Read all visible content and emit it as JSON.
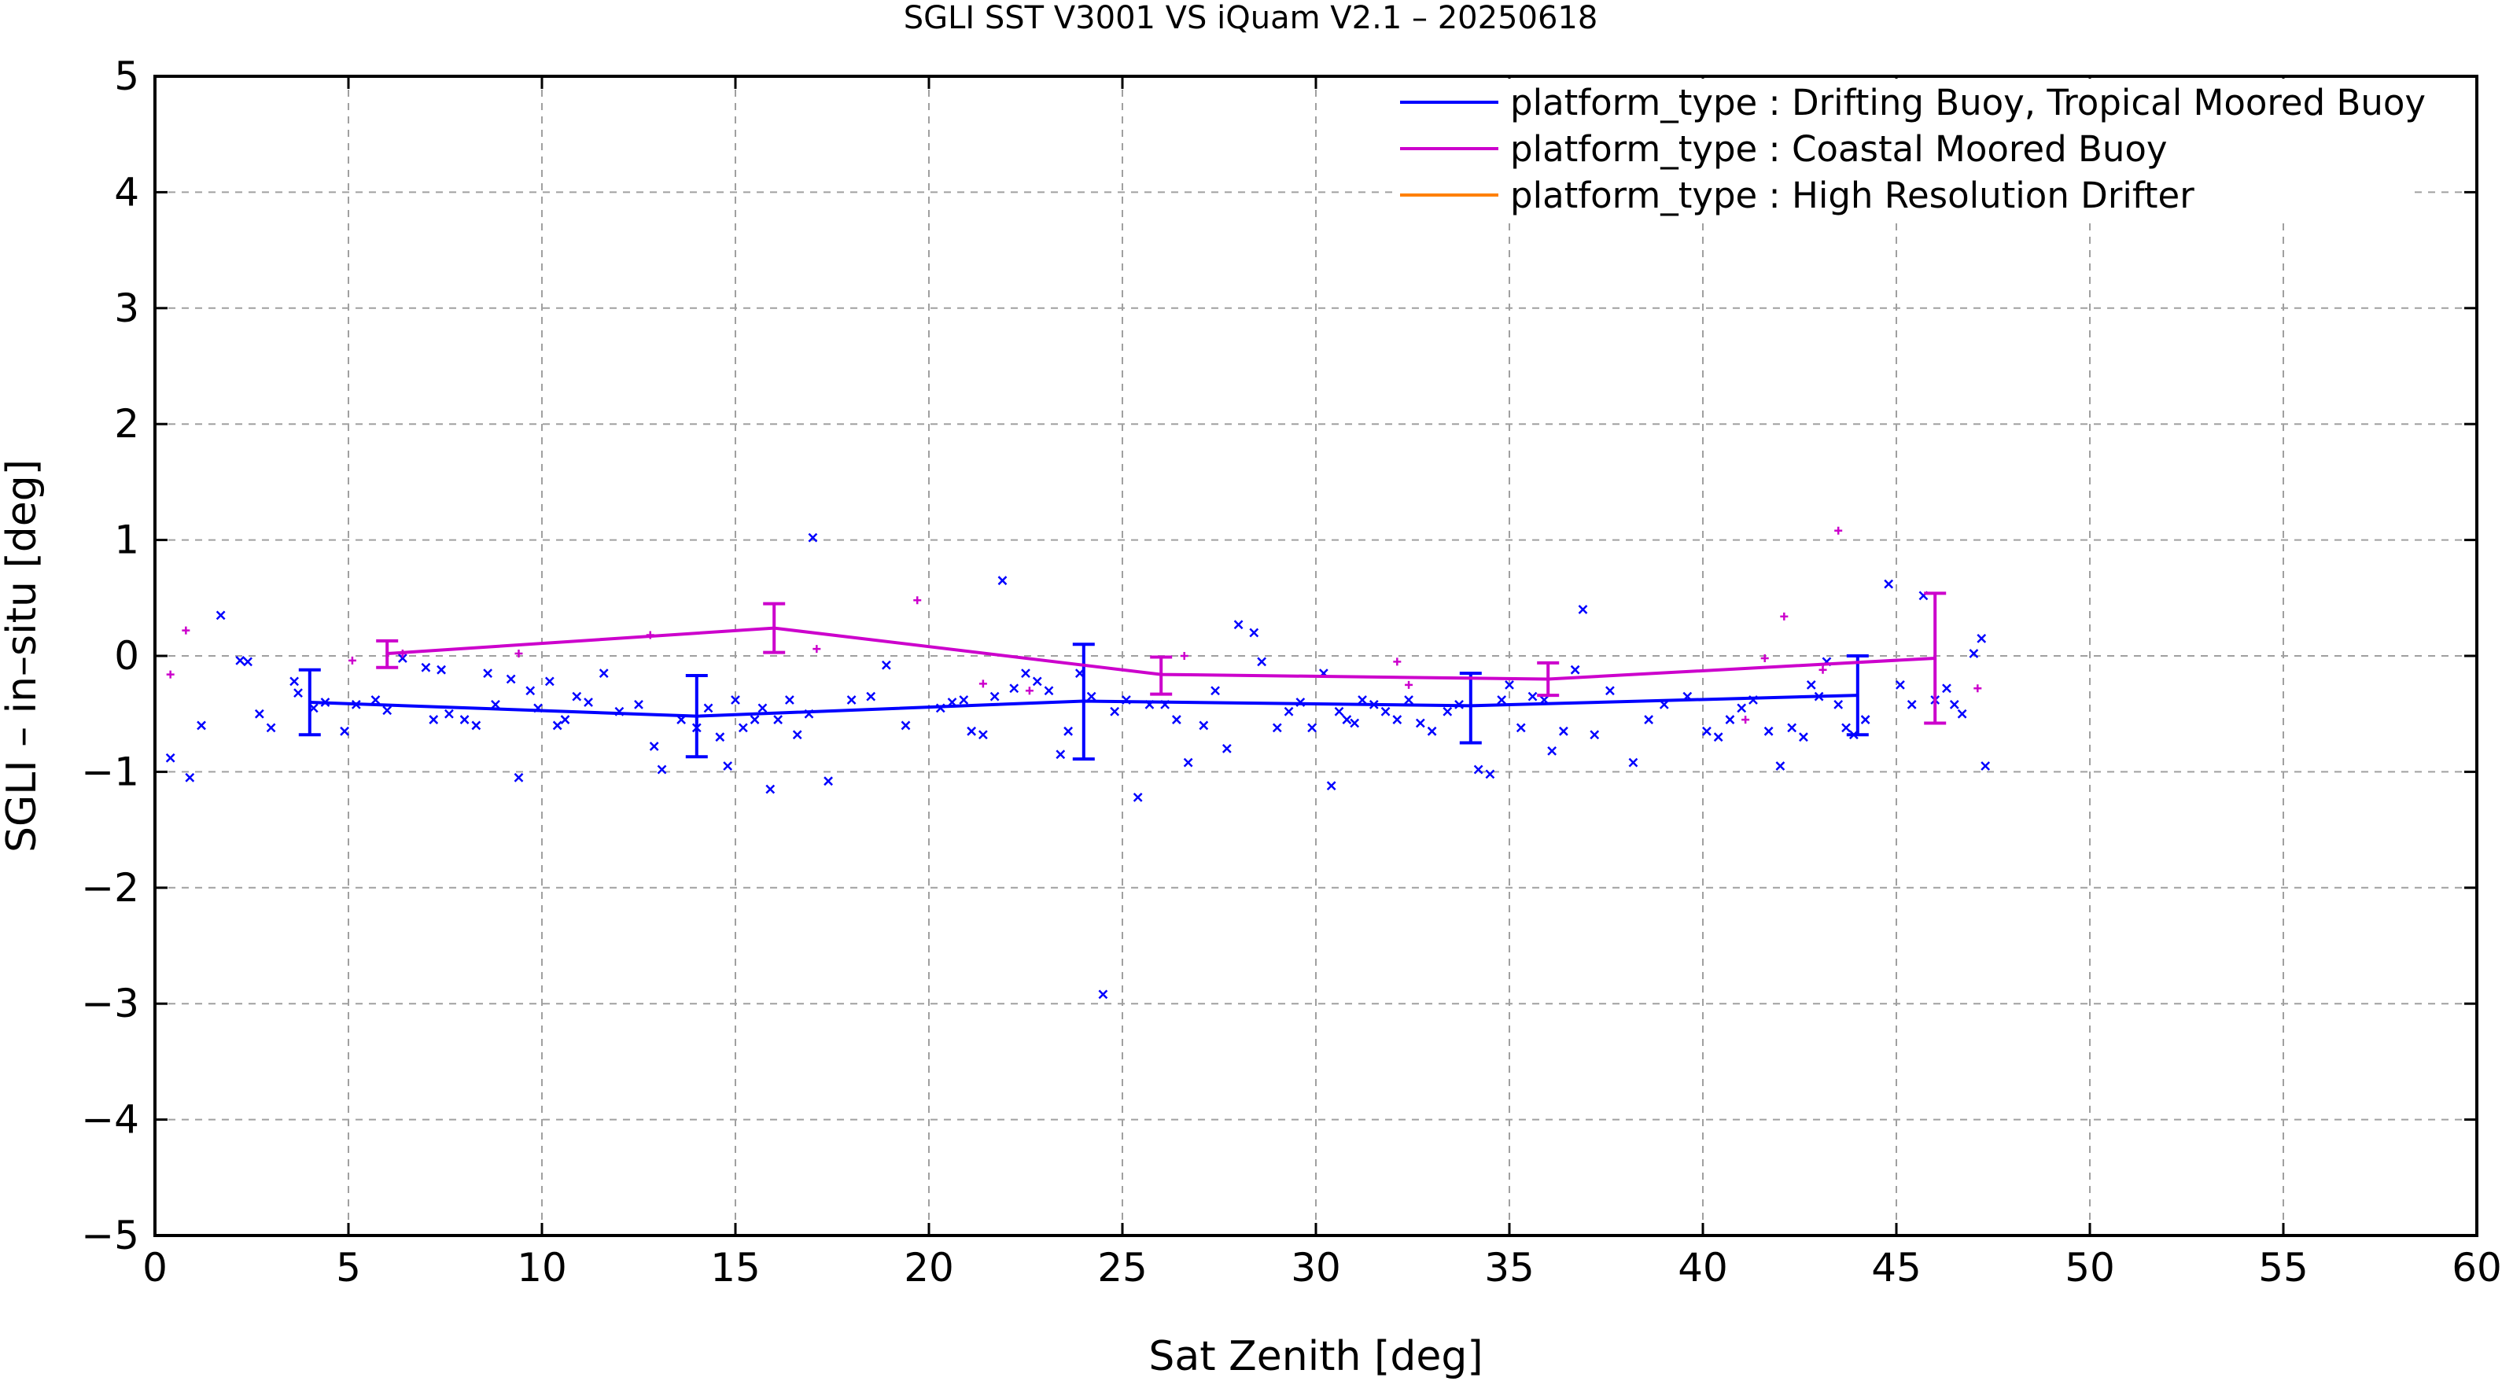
{
  "chart_data": {
    "type": "scatter",
    "title": "SGLI SST V3001 VS iQuam V2.1  – 20250618",
    "xlabel": "Sat Zenith [deg]",
    "ylabel": "SGLI – in–situ [deg]",
    "xlim": [
      0,
      60
    ],
    "ylim": [
      -5,
      5
    ],
    "x_ticks": [
      "0",
      "5",
      "10",
      "15",
      "20",
      "25",
      "30",
      "35",
      "40",
      "45",
      "50",
      "55",
      "60"
    ],
    "y_ticks": [
      "−5",
      "−4",
      "−3",
      "−2",
      "−1",
      "0",
      "1",
      "2",
      "3",
      "4",
      "5"
    ],
    "grid": true,
    "legend_position": "top-right",
    "series": [
      {
        "name": "platform_type : Drifting Buoy, Tropical Moored Buoy",
        "color": "#0000ff",
        "marker": "x",
        "mean_line": [
          {
            "x": 4,
            "y": -0.4,
            "low": -0.68,
            "high": -0.12
          },
          {
            "x": 14,
            "y": -0.52,
            "low": -0.87,
            "high": -0.17
          },
          {
            "x": 24,
            "y": -0.39,
            "low": -0.89,
            "high": 0.1
          },
          {
            "x": 34,
            "y": -0.43,
            "low": -0.75,
            "high": -0.15
          },
          {
            "x": 44,
            "y": -0.34,
            "low": -0.68,
            "high": 0.0
          }
        ],
        "points": [
          [
            0.4,
            -0.88
          ],
          [
            0.9,
            -1.05
          ],
          [
            1.2,
            -0.6
          ],
          [
            1.7,
            0.35
          ],
          [
            2.2,
            -0.04
          ],
          [
            2.4,
            -0.05
          ],
          [
            2.7,
            -0.5
          ],
          [
            3.0,
            -0.62
          ],
          [
            3.6,
            -0.22
          ],
          [
            3.7,
            -0.32
          ],
          [
            4.1,
            -0.45
          ],
          [
            4.4,
            -0.4
          ],
          [
            4.9,
            -0.65
          ],
          [
            5.2,
            -0.42
          ],
          [
            5.7,
            -0.38
          ],
          [
            6.0,
            -0.47
          ],
          [
            6.4,
            -0.02
          ],
          [
            7.0,
            -0.1
          ],
          [
            7.2,
            -0.55
          ],
          [
            7.4,
            -0.12
          ],
          [
            7.6,
            -0.5
          ],
          [
            8.0,
            -0.55
          ],
          [
            8.3,
            -0.6
          ],
          [
            8.6,
            -0.15
          ],
          [
            8.8,
            -0.42
          ],
          [
            9.2,
            -0.2
          ],
          [
            9.4,
            -1.05
          ],
          [
            9.7,
            -0.3
          ],
          [
            9.9,
            -0.45
          ],
          [
            10.2,
            -0.22
          ],
          [
            10.4,
            -0.6
          ],
          [
            10.6,
            -0.55
          ],
          [
            10.9,
            -0.35
          ],
          [
            11.2,
            -0.4
          ],
          [
            11.6,
            -0.15
          ],
          [
            12.0,
            -0.48
          ],
          [
            12.5,
            -0.42
          ],
          [
            12.9,
            -0.78
          ],
          [
            13.1,
            -0.98
          ],
          [
            13.6,
            -0.55
          ],
          [
            14.0,
            -0.62
          ],
          [
            14.3,
            -0.45
          ],
          [
            14.6,
            -0.7
          ],
          [
            14.8,
            -0.95
          ],
          [
            15.0,
            -0.38
          ],
          [
            15.2,
            -0.62
          ],
          [
            15.5,
            -0.55
          ],
          [
            15.7,
            -0.45
          ],
          [
            15.9,
            -1.15
          ],
          [
            16.1,
            -0.55
          ],
          [
            16.4,
            -0.38
          ],
          [
            16.6,
            -0.68
          ],
          [
            16.9,
            -0.5
          ],
          [
            17.0,
            1.02
          ],
          [
            17.4,
            -1.08
          ],
          [
            18.0,
            -0.38
          ],
          [
            18.5,
            -0.35
          ],
          [
            18.9,
            -0.08
          ],
          [
            19.4,
            -0.6
          ],
          [
            20.3,
            -0.45
          ],
          [
            20.6,
            -0.4
          ],
          [
            20.9,
            -0.38
          ],
          [
            21.1,
            -0.65
          ],
          [
            21.4,
            -0.68
          ],
          [
            21.7,
            -0.35
          ],
          [
            21.9,
            0.65
          ],
          [
            22.2,
            -0.28
          ],
          [
            22.5,
            -0.15
          ],
          [
            22.8,
            -0.22
          ],
          [
            23.1,
            -0.3
          ],
          [
            23.4,
            -0.85
          ],
          [
            23.6,
            -0.65
          ],
          [
            23.9,
            -0.15
          ],
          [
            24.2,
            -0.35
          ],
          [
            24.5,
            -2.92
          ],
          [
            24.8,
            -0.48
          ],
          [
            25.1,
            -0.38
          ],
          [
            25.4,
            -1.22
          ],
          [
            25.7,
            -0.42
          ],
          [
            26.1,
            -0.42
          ],
          [
            26.4,
            -0.55
          ],
          [
            26.7,
            -0.92
          ],
          [
            27.1,
            -0.6
          ],
          [
            27.4,
            -0.3
          ],
          [
            27.7,
            -0.8
          ],
          [
            28.0,
            0.27
          ],
          [
            28.4,
            0.2
          ],
          [
            28.6,
            -0.05
          ],
          [
            29.0,
            -0.62
          ],
          [
            29.3,
            -0.48
          ],
          [
            29.6,
            -0.4
          ],
          [
            29.9,
            -0.62
          ],
          [
            30.2,
            -0.15
          ],
          [
            30.4,
            -1.12
          ],
          [
            30.6,
            -0.48
          ],
          [
            30.8,
            -0.55
          ],
          [
            31.0,
            -0.58
          ],
          [
            31.2,
            -0.38
          ],
          [
            31.5,
            -0.42
          ],
          [
            31.8,
            -0.48
          ],
          [
            32.1,
            -0.55
          ],
          [
            32.4,
            -0.38
          ],
          [
            32.7,
            -0.58
          ],
          [
            33.0,
            -0.65
          ],
          [
            33.4,
            -0.48
          ],
          [
            33.7,
            -0.42
          ],
          [
            34.2,
            -0.98
          ],
          [
            34.5,
            -1.02
          ],
          [
            34.8,
            -0.38
          ],
          [
            35.0,
            -0.25
          ],
          [
            35.3,
            -0.62
          ],
          [
            35.6,
            -0.35
          ],
          [
            35.9,
            -0.38
          ],
          [
            36.1,
            -0.82
          ],
          [
            36.4,
            -0.65
          ],
          [
            36.7,
            -0.12
          ],
          [
            36.9,
            0.4
          ],
          [
            37.2,
            -0.68
          ],
          [
            37.6,
            -0.3
          ],
          [
            38.2,
            -0.92
          ],
          [
            38.6,
            -0.55
          ],
          [
            39.0,
            -0.42
          ],
          [
            39.6,
            -0.35
          ],
          [
            40.1,
            -0.65
          ],
          [
            40.4,
            -0.7
          ],
          [
            40.7,
            -0.55
          ],
          [
            41.0,
            -0.45
          ],
          [
            41.3,
            -0.38
          ],
          [
            41.7,
            -0.65
          ],
          [
            42.0,
            -0.95
          ],
          [
            42.3,
            -0.62
          ],
          [
            42.6,
            -0.7
          ],
          [
            42.8,
            -0.25
          ],
          [
            43.0,
            -0.35
          ],
          [
            43.2,
            -0.05
          ],
          [
            43.5,
            -0.42
          ],
          [
            43.7,
            -0.62
          ],
          [
            43.9,
            -0.68
          ],
          [
            44.2,
            -0.55
          ],
          [
            44.8,
            0.62
          ],
          [
            45.1,
            -0.25
          ],
          [
            45.4,
            -0.42
          ],
          [
            45.7,
            0.52
          ],
          [
            46.0,
            -0.38
          ],
          [
            46.3,
            -0.28
          ],
          [
            46.5,
            -0.42
          ],
          [
            46.7,
            -0.5
          ],
          [
            47.0,
            0.02
          ],
          [
            47.2,
            0.15
          ],
          [
            47.3,
            -0.95
          ]
        ]
      },
      {
        "name": "platform_type : Coastal Moored Buoy",
        "color": "#cc00cc",
        "marker": "+",
        "mean_line": [
          {
            "x": 6,
            "y": 0.02,
            "low": -0.1,
            "high": 0.13
          },
          {
            "x": 16,
            "y": 0.24,
            "low": 0.03,
            "high": 0.45
          },
          {
            "x": 26,
            "y": -0.16,
            "low": -0.33,
            "high": -0.01
          },
          {
            "x": 36,
            "y": -0.2,
            "low": -0.34,
            "high": -0.06
          },
          {
            "x": 46,
            "y": -0.02,
            "low": -0.58,
            "high": 0.54
          }
        ],
        "points": [
          [
            0.4,
            -0.16
          ],
          [
            0.8,
            0.22
          ],
          [
            5.1,
            -0.04
          ],
          [
            6.4,
            0.02
          ],
          [
            9.4,
            0.02
          ],
          [
            12.8,
            0.18
          ],
          [
            17.1,
            0.06
          ],
          [
            19.7,
            0.48
          ],
          [
            21.4,
            -0.24
          ],
          [
            22.6,
            -0.3
          ],
          [
            26.6,
            0.0
          ],
          [
            32.1,
            -0.05
          ],
          [
            32.4,
            -0.25
          ],
          [
            41.1,
            -0.55
          ],
          [
            41.6,
            -0.02
          ],
          [
            42.1,
            0.34
          ],
          [
            43.1,
            -0.12
          ],
          [
            43.5,
            1.08
          ],
          [
            47.1,
            -0.28
          ]
        ]
      },
      {
        "name": "platform_type : High Resolution Drifter",
        "color": "#ff8000",
        "marker": "x",
        "mean_line": [],
        "points": []
      }
    ]
  }
}
